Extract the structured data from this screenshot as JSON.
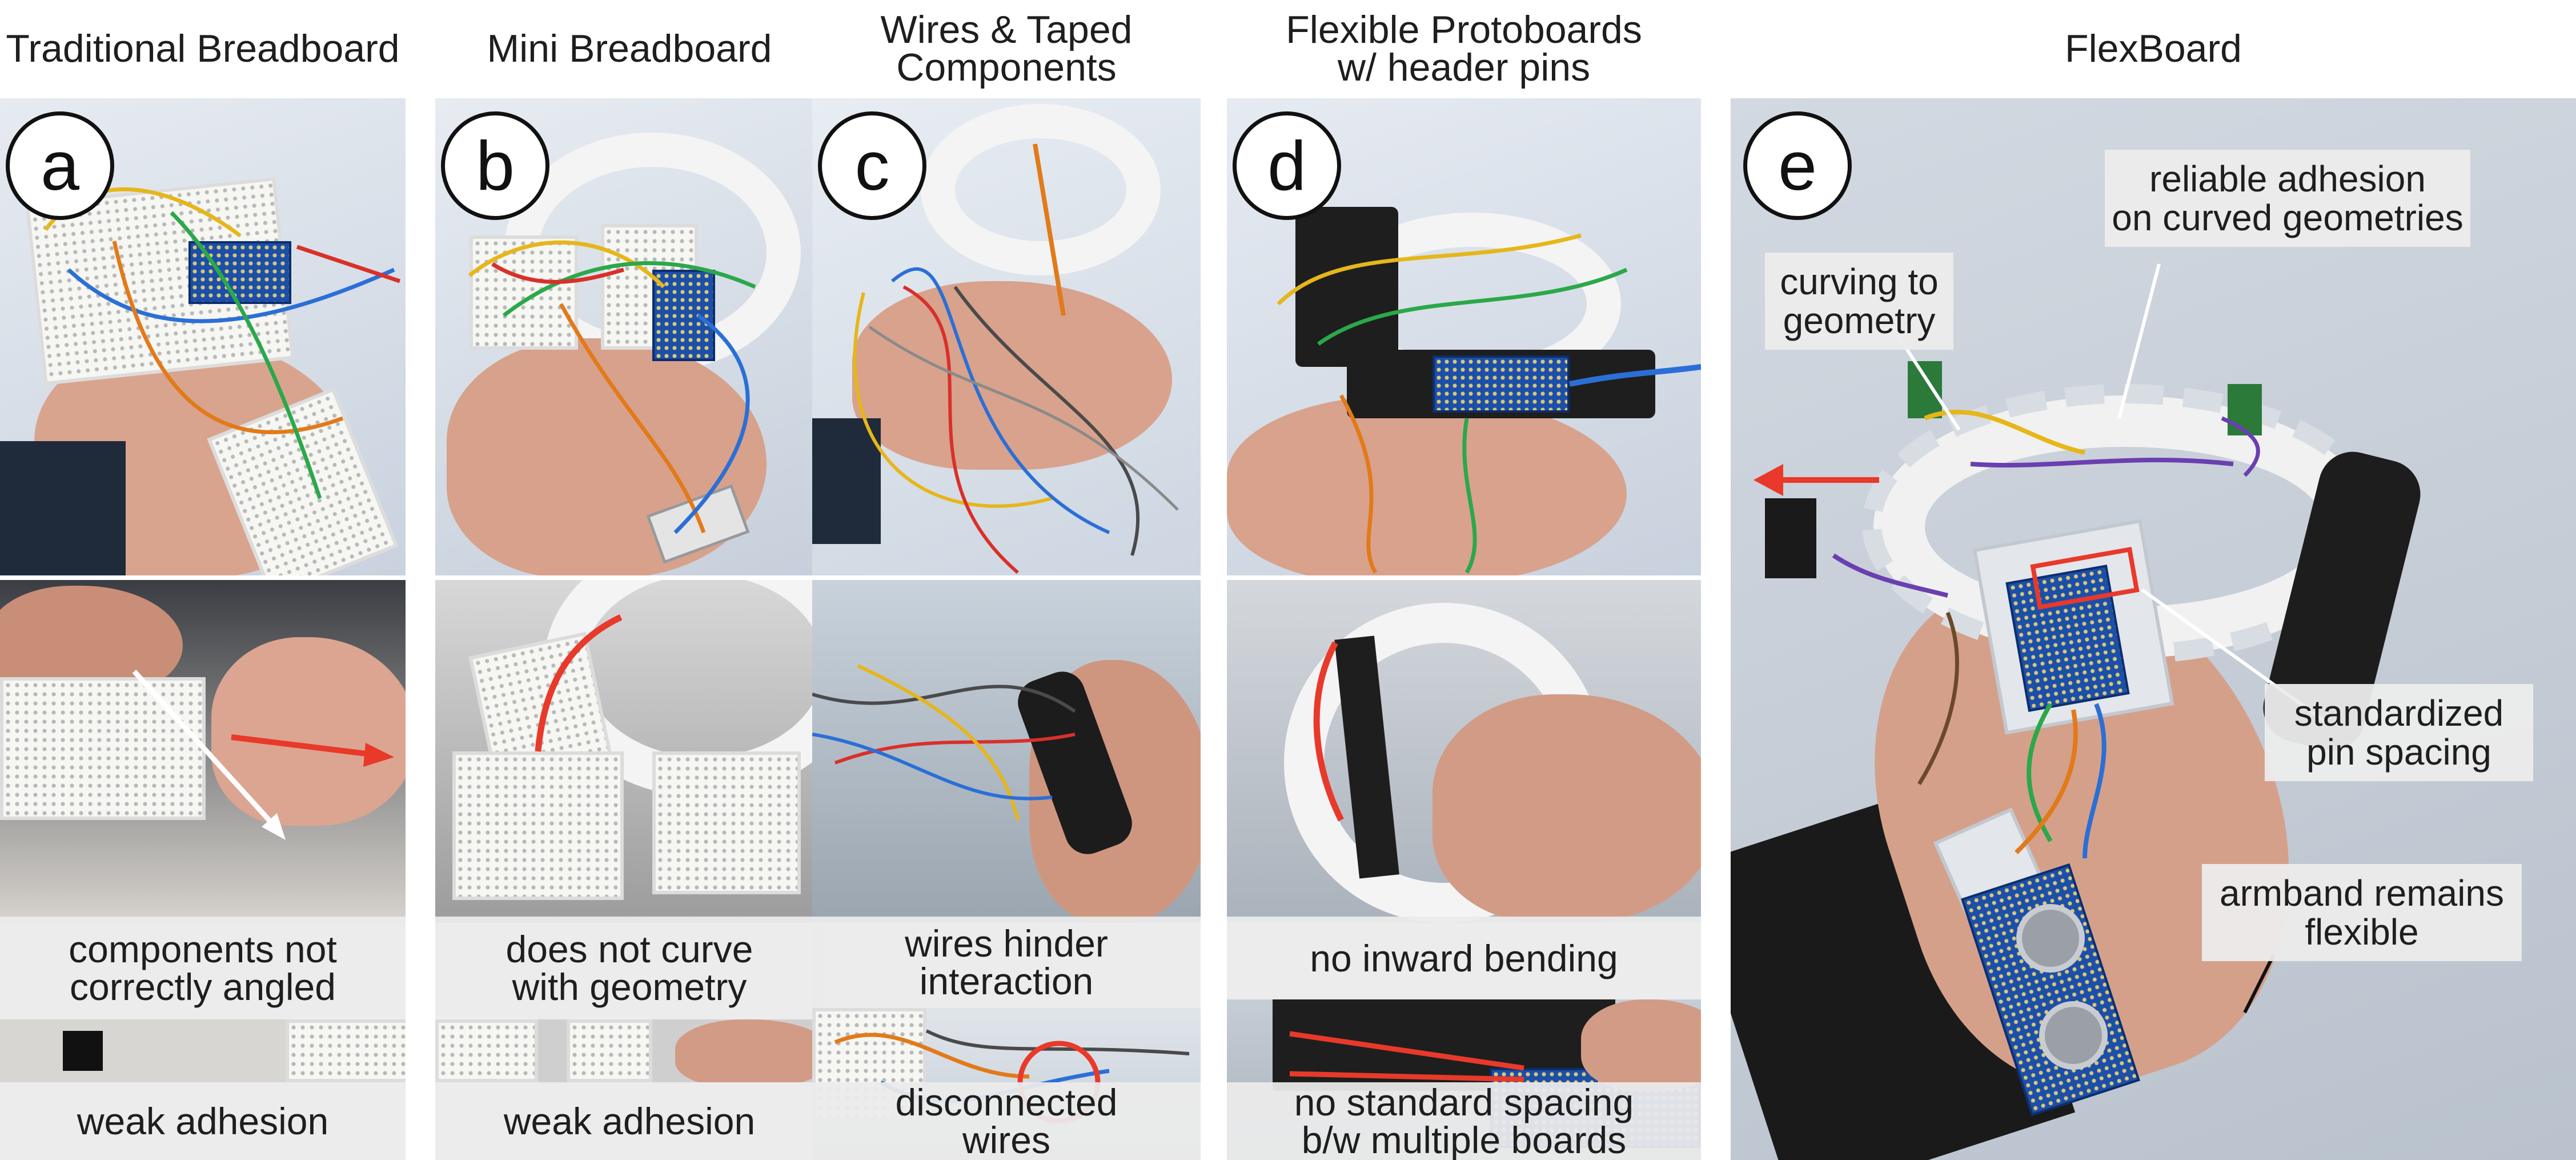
{
  "columns": [
    {
      "header": "Traditional Breadboard",
      "badge": "a",
      "captions": [
        "components not\ncorrectly angled",
        "weak adhesion"
      ]
    },
    {
      "header": "Mini Breadboard",
      "badge": "b",
      "captions": [
        "does not curve\nwith geometry",
        "weak adhesion"
      ]
    },
    {
      "header": "Wires & Taped\nComponents",
      "badge": "c",
      "captions": [
        "wires hinder\ninteraction",
        "disconnected\nwires"
      ]
    },
    {
      "header": "Flexible Protoboards\nw/ header pins",
      "badge": "d",
      "captions": [
        "no inward bending",
        "no standard spacing\nb/w multiple boards"
      ]
    },
    {
      "header": "FlexBoard",
      "badge": "e",
      "callouts": [
        "reliable adhesion\non curved geometries",
        "curving to\ngeometry",
        "standardized\npin spacing",
        "armband remains\nflexible"
      ]
    }
  ],
  "colors": {
    "annotation_red": "#e8392a",
    "annotation_white": "#ffffff",
    "background": "#ffffff"
  }
}
